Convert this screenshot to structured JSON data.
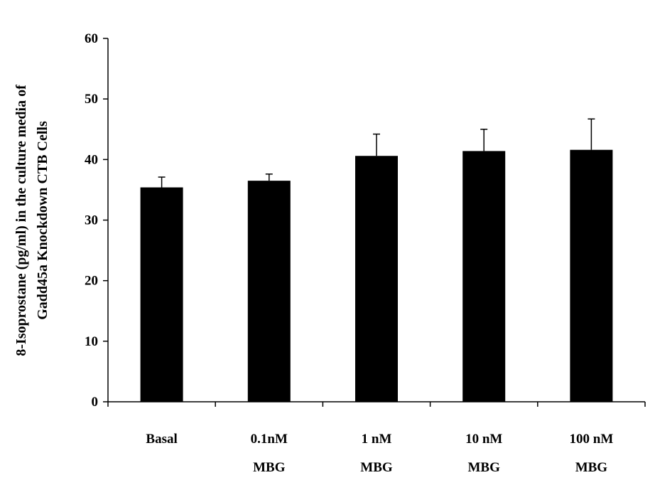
{
  "chart_data": {
    "type": "bar",
    "title": "",
    "xlabel": "",
    "ylabel": "8-Isoprostane (pg/ml) in the culture media of Gadd45a Knockdown CTB Cells",
    "ylabel_lines": [
      "8-Isoprostane (pg/ml)  in the culture media of",
      "Gadd45a Knockdown CTB Cells"
    ],
    "ylim": [
      0,
      60
    ],
    "yticks": [
      0,
      10,
      20,
      30,
      40,
      50,
      60
    ],
    "grid": false,
    "categories": [
      [
        "Basal"
      ],
      [
        "0.1nM",
        "MBG"
      ],
      [
        "1 nM",
        "MBG"
      ],
      [
        "10 nM",
        "MBG"
      ],
      [
        "100 nM",
        "MBG"
      ]
    ],
    "values": [
      35.4,
      36.5,
      40.6,
      41.4,
      41.6
    ],
    "error": [
      1.7,
      1.1,
      3.6,
      3.6,
      5.1
    ],
    "bar_color": "#000000"
  }
}
